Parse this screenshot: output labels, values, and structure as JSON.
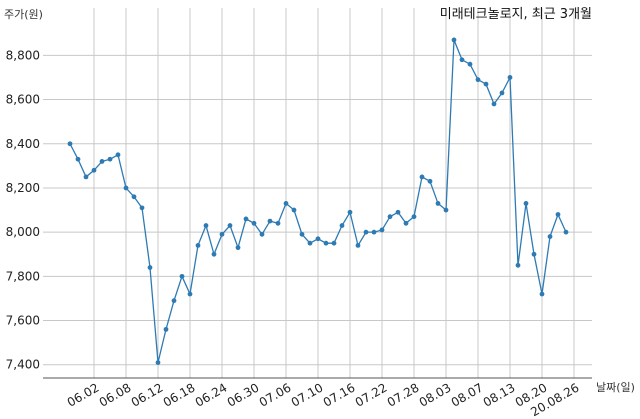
{
  "chart_data": {
    "type": "line",
    "title": "미래테크놀로지, 최근 3개월",
    "xlabel": "날짜(일)",
    "ylabel": "주가(원)",
    "ylim": [
      7340,
      8960
    ],
    "yticks": [
      7400,
      7600,
      7800,
      8000,
      8200,
      8400,
      8600,
      8800
    ],
    "ytick_labels": [
      "7,400",
      "7,600",
      "7,800",
      "8,000",
      "8,200",
      "8,400",
      "8,600",
      "8,800"
    ],
    "xticks": [
      "06.02",
      "06.08",
      "06.12",
      "06.18",
      "06.24",
      "06.30",
      "07.06",
      "07.10",
      "07.16",
      "07.22",
      "07.28",
      "08.03",
      "08.07",
      "08.13",
      "08.20",
      "20.08.26"
    ],
    "xtick_positions": [
      3,
      7,
      11,
      15,
      19,
      23,
      27,
      31,
      35,
      39,
      43,
      47,
      51,
      55,
      59,
      63
    ],
    "grid": true,
    "color": "#2e7bb4",
    "series": [
      {
        "values": [
          8400,
          8330,
          8250,
          8280,
          8320,
          8330,
          8350,
          8200,
          8160,
          8110,
          7840,
          7410,
          7560,
          7690,
          7800,
          7720,
          7940,
          8030,
          7900,
          7990,
          8030,
          7930,
          8060,
          8040,
          7990,
          8050,
          8040,
          8130,
          8100,
          7990,
          7950,
          7970,
          7950,
          7950,
          8030,
          8090,
          7940,
          8000,
          8000,
          8010,
          8070,
          8090,
          8040,
          8070,
          8250,
          8230,
          8130,
          8100,
          8870,
          8780,
          8760,
          8690,
          8670,
          8580,
          8630,
          8700,
          7850,
          8130,
          7900,
          7720,
          7980,
          8080,
          8000
        ]
      }
    ]
  }
}
